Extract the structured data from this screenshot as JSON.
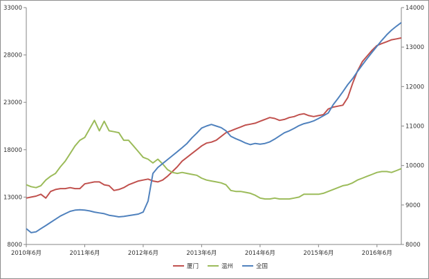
{
  "chart_data": {
    "type": "line",
    "title": "",
    "xlabel": "",
    "ylabel_left": "",
    "ylabel_right": "",
    "x_ticks": [
      "2010年6月",
      "2011年6月",
      "2012年6月",
      "2013年6月",
      "2014年6月",
      "2015年6月",
      "2016年6月"
    ],
    "x_range": [
      "2010-06",
      "2016-11"
    ],
    "y_left": {
      "min": 8000,
      "max": 33000,
      "ticks": [
        "8000",
        "13000",
        "18000",
        "23000",
        "28000",
        "33000"
      ]
    },
    "y_right": {
      "min": 8000,
      "max": 14000,
      "ticks": [
        "8000",
        "9000",
        "10000",
        "11000",
        "12000",
        "13000",
        "14000"
      ]
    },
    "gridlines": false,
    "legend_position": "bottom",
    "series": [
      {
        "name": "厦门",
        "axis": "left",
        "color": "#c0504d",
        "x": [
          "2010-06",
          "2010-07",
          "2010-08",
          "2010-09",
          "2010-10",
          "2010-11",
          "2010-12",
          "2011-01",
          "2011-02",
          "2011-03",
          "2011-04",
          "2011-05",
          "2011-06",
          "2011-07",
          "2011-08",
          "2011-09",
          "2011-10",
          "2011-11",
          "2011-12",
          "2012-01",
          "2012-02",
          "2012-03",
          "2012-04",
          "2012-05",
          "2012-06",
          "2012-07",
          "2012-08",
          "2012-09",
          "2012-10",
          "2012-11",
          "2012-12",
          "2013-01",
          "2013-02",
          "2013-03",
          "2013-04",
          "2013-05",
          "2013-06",
          "2013-07",
          "2013-08",
          "2013-09",
          "2013-10",
          "2013-11",
          "2013-12",
          "2014-01",
          "2014-02",
          "2014-03",
          "2014-04",
          "2014-05",
          "2014-06",
          "2014-07",
          "2014-08",
          "2014-09",
          "2014-10",
          "2014-11",
          "2014-12",
          "2015-01",
          "2015-02",
          "2015-03",
          "2015-04",
          "2015-05",
          "2015-06",
          "2015-07",
          "2015-08",
          "2015-09",
          "2015-10",
          "2015-11",
          "2015-12",
          "2016-01",
          "2016-02",
          "2016-03",
          "2016-04",
          "2016-05",
          "2016-06",
          "2016-07",
          "2016-08",
          "2016-09",
          "2016-10",
          "2016-11"
        ],
        "values": [
          12900,
          13000,
          13100,
          13300,
          12900,
          13600,
          13800,
          13900,
          13900,
          14000,
          13900,
          13900,
          14400,
          14500,
          14600,
          14600,
          14300,
          14200,
          13700,
          13800,
          14000,
          14300,
          14500,
          14700,
          14800,
          14900,
          14700,
          14600,
          14800,
          15200,
          15700,
          16200,
          16800,
          17200,
          17600,
          18000,
          18400,
          18700,
          18800,
          19000,
          19400,
          19800,
          20000,
          20200,
          20400,
          20600,
          20700,
          20800,
          21000,
          21200,
          21400,
          21300,
          21100,
          21200,
          21400,
          21500,
          21700,
          21800,
          21600,
          21500,
          21600,
          21700,
          22300,
          22500,
          22600,
          22700,
          23500,
          25000,
          26300,
          27300,
          27900,
          28500,
          29000,
          29200,
          29400,
          29600,
          29700,
          29800
        ]
      },
      {
        "name": "温州",
        "axis": "left",
        "color": "#9bbb59",
        "x": [
          "2010-06",
          "2010-07",
          "2010-08",
          "2010-09",
          "2010-10",
          "2010-11",
          "2010-12",
          "2011-01",
          "2011-02",
          "2011-03",
          "2011-04",
          "2011-05",
          "2011-06",
          "2011-07",
          "2011-08",
          "2011-09",
          "2011-10",
          "2011-11",
          "2011-12",
          "2012-01",
          "2012-02",
          "2012-03",
          "2012-04",
          "2012-05",
          "2012-06",
          "2012-07",
          "2012-08",
          "2012-09",
          "2012-10",
          "2012-11",
          "2012-12",
          "2013-01",
          "2013-02",
          "2013-03",
          "2013-04",
          "2013-05",
          "2013-06",
          "2013-07",
          "2013-08",
          "2013-09",
          "2013-10",
          "2013-11",
          "2013-12",
          "2014-01",
          "2014-02",
          "2014-03",
          "2014-04",
          "2014-05",
          "2014-06",
          "2014-07",
          "2014-08",
          "2014-09",
          "2014-10",
          "2014-11",
          "2014-12",
          "2015-01",
          "2015-02",
          "2015-03",
          "2015-04",
          "2015-05",
          "2015-06",
          "2015-07",
          "2015-08",
          "2015-09",
          "2015-10",
          "2015-11",
          "2015-12",
          "2016-01",
          "2016-02",
          "2016-03",
          "2016-04",
          "2016-05",
          "2016-06",
          "2016-07",
          "2016-08",
          "2016-09",
          "2016-10",
          "2016-11"
        ],
        "values": [
          14300,
          14100,
          14000,
          14200,
          14800,
          15200,
          15500,
          16200,
          16800,
          17600,
          18400,
          19000,
          19300,
          20200,
          21100,
          20000,
          21000,
          20000,
          19900,
          19800,
          19000,
          19000,
          18400,
          17800,
          17200,
          17000,
          16600,
          17000,
          16500,
          15900,
          15600,
          15500,
          15600,
          15500,
          15400,
          15300,
          15000,
          14800,
          14700,
          14600,
          14500,
          14300,
          13700,
          13600,
          13600,
          13500,
          13400,
          13200,
          12900,
          12800,
          12800,
          12900,
          12800,
          12800,
          12800,
          12900,
          13000,
          13300,
          13300,
          13300,
          13300,
          13400,
          13600,
          13800,
          14000,
          14200,
          14300,
          14500,
          14800,
          15000,
          15200,
          15400,
          15600,
          15700,
          15700,
          15600,
          15800,
          16000
        ]
      },
      {
        "name": "全国",
        "axis": "right",
        "color": "#4f81bd",
        "x": [
          "2010-06",
          "2010-07",
          "2010-08",
          "2010-09",
          "2010-10",
          "2010-11",
          "2010-12",
          "2011-01",
          "2011-02",
          "2011-03",
          "2011-04",
          "2011-05",
          "2011-06",
          "2011-07",
          "2011-08",
          "2011-09",
          "2011-10",
          "2011-11",
          "2011-12",
          "2012-01",
          "2012-02",
          "2012-03",
          "2012-04",
          "2012-05",
          "2012-06",
          "2012-07",
          "2012-08",
          "2012-09",
          "2012-10",
          "2012-11",
          "2012-12",
          "2013-01",
          "2013-02",
          "2013-03",
          "2013-04",
          "2013-05",
          "2013-06",
          "2013-07",
          "2013-08",
          "2013-09",
          "2013-10",
          "2013-11",
          "2013-12",
          "2014-01",
          "2014-02",
          "2014-03",
          "2014-04",
          "2014-05",
          "2014-06",
          "2014-07",
          "2014-08",
          "2014-09",
          "2014-10",
          "2014-11",
          "2014-12",
          "2015-01",
          "2015-02",
          "2015-03",
          "2015-04",
          "2015-05",
          "2015-06",
          "2015-07",
          "2015-08",
          "2015-09",
          "2015-10",
          "2015-11",
          "2015-12",
          "2016-01",
          "2016-02",
          "2016-03",
          "2016-04",
          "2016-05",
          "2016-06",
          "2016-07",
          "2016-08",
          "2016-09",
          "2016-10",
          "2016-11"
        ],
        "values": [
          8400,
          8300,
          8320,
          8400,
          8480,
          8560,
          8640,
          8720,
          8780,
          8840,
          8870,
          8880,
          8870,
          8850,
          8820,
          8800,
          8780,
          8740,
          8720,
          8700,
          8710,
          8730,
          8750,
          8770,
          8820,
          9100,
          9800,
          9950,
          10050,
          10150,
          10250,
          10350,
          10450,
          10560,
          10700,
          10820,
          10950,
          11000,
          11040,
          11000,
          10960,
          10880,
          10740,
          10680,
          10630,
          10570,
          10530,
          10560,
          10540,
          10560,
          10600,
          10670,
          10750,
          10830,
          10880,
          10940,
          11010,
          11060,
          11090,
          11130,
          11190,
          11260,
          11330,
          11540,
          11700,
          11870,
          12050,
          12200,
          12380,
          12550,
          12710,
          12870,
          13020,
          13170,
          13310,
          13430,
          13530,
          13620
        ]
      }
    ]
  }
}
